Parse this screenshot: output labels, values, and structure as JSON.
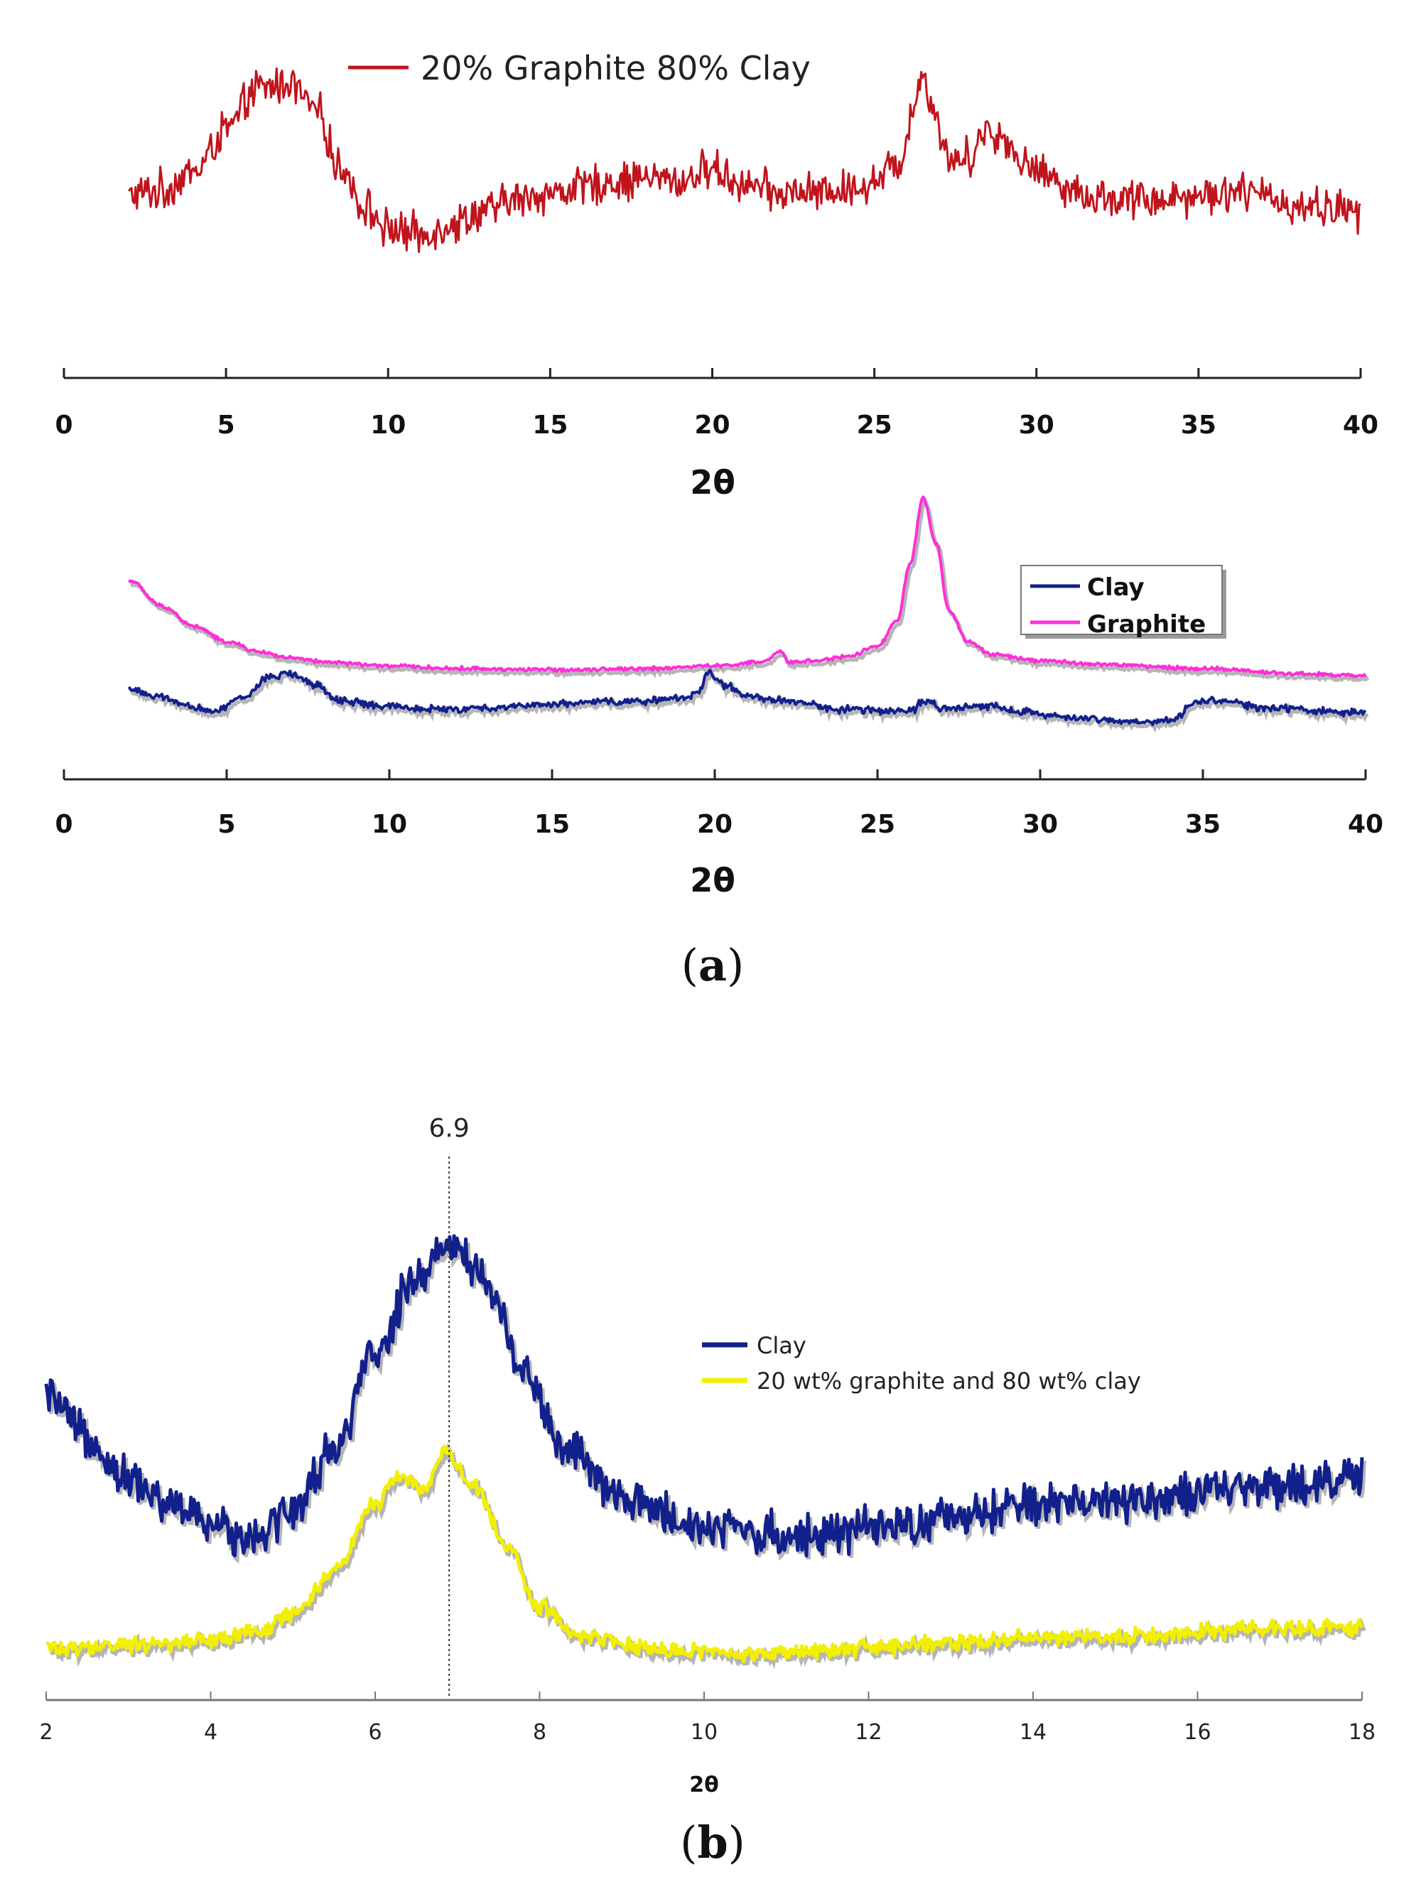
{
  "figure": {
    "panel_a_label": "(a)",
    "panel_b_label": "(b)",
    "panel_a_letter": "a",
    "panel_b_letter": "b"
  },
  "colors": {
    "composite_red": "#c0141c",
    "clay_blue": "#12208c",
    "graphite_magenta": "#ff2ed8",
    "composite_yellow": "#f2f000",
    "shadow": "#b5b5b5"
  },
  "chart_data": [
    {
      "id": "a-top",
      "type": "line",
      "title": "",
      "xlabel": "2θ",
      "ylabel": "",
      "xlim": [
        0,
        40
      ],
      "xticks": [
        0,
        5,
        10,
        15,
        20,
        25,
        30,
        35,
        40
      ],
      "xtick_labels": [
        "0",
        "5",
        "10",
        "15",
        "20",
        "25",
        "30",
        "35",
        "40"
      ],
      "legend": [
        "20% Graphite 80% Clay"
      ],
      "legend_position": "top-center",
      "series": [
        {
          "name": "20% Graphite 80% Clay",
          "color_key": "composite_red",
          "noise": 0.55,
          "points": [
            [
              2,
              2.0
            ],
            [
              3,
              2.2
            ],
            [
              4,
              2.8
            ],
            [
              5,
              4.2
            ],
            [
              6,
              5.6
            ],
            [
              7,
              5.8
            ],
            [
              7.8,
              4.8
            ],
            [
              8.5,
              3.0
            ],
            [
              9.3,
              1.6
            ],
            [
              10,
              0.9
            ],
            [
              11,
              0.7
            ],
            [
              12,
              1.1
            ],
            [
              13,
              1.5
            ],
            [
              14,
              1.9
            ],
            [
              15,
              2.1
            ],
            [
              16,
              2.3
            ],
            [
              17,
              2.5
            ],
            [
              18,
              2.6
            ],
            [
              19,
              2.5
            ],
            [
              20,
              2.9
            ],
            [
              21,
              2.4
            ],
            [
              22,
              2.1
            ],
            [
              23,
              2.1
            ],
            [
              24,
              2.2
            ],
            [
              25,
              2.5
            ],
            [
              25.8,
              3.2
            ],
            [
              26.2,
              5.0
            ],
            [
              26.5,
              6.1
            ],
            [
              26.8,
              5.0
            ],
            [
              27.3,
              3.2
            ],
            [
              27.8,
              3.3
            ],
            [
              28.5,
              4.2
            ],
            [
              29,
              3.9
            ],
            [
              29.7,
              3.0
            ],
            [
              30.5,
              2.6
            ],
            [
              31.5,
              2.0
            ],
            [
              33,
              1.9
            ],
            [
              35,
              2.0
            ],
            [
              36,
              2.2
            ],
            [
              37,
              2.0
            ],
            [
              38,
              1.7
            ],
            [
              39,
              1.6
            ],
            [
              40,
              1.5
            ]
          ]
        }
      ]
    },
    {
      "id": "a-bottom",
      "type": "line",
      "title": "",
      "xlabel": "2θ",
      "ylabel": "",
      "xlim": [
        0,
        40
      ],
      "xticks": [
        0,
        5,
        10,
        15,
        20,
        25,
        30,
        35,
        40
      ],
      "xtick_labels": [
        "0",
        "5",
        "10",
        "15",
        "20",
        "25",
        "30",
        "35",
        "40"
      ],
      "legend": [
        "Clay",
        "Graphite"
      ],
      "legend_position": "top-right",
      "series": [
        {
          "name": "Graphite",
          "color_key": "graphite_magenta",
          "noise": 0.06,
          "points": [
            [
              2,
              6.2
            ],
            [
              3,
              5.2
            ],
            [
              4,
              4.4
            ],
            [
              5,
              3.8
            ],
            [
              6,
              3.4
            ],
            [
              7,
              3.15
            ],
            [
              8,
              3.0
            ],
            [
              10,
              2.85
            ],
            [
              12,
              2.75
            ],
            [
              15,
              2.7
            ],
            [
              18,
              2.75
            ],
            [
              20,
              2.85
            ],
            [
              21.5,
              3.0
            ],
            [
              22,
              3.4
            ],
            [
              22.3,
              3.0
            ],
            [
              23,
              3.05
            ],
            [
              24,
              3.2
            ],
            [
              25,
              3.6
            ],
            [
              25.6,
              4.6
            ],
            [
              26,
              6.8
            ],
            [
              26.4,
              9.4
            ],
            [
              26.8,
              7.6
            ],
            [
              27.2,
              5.0
            ],
            [
              27.8,
              3.8
            ],
            [
              28.5,
              3.3
            ],
            [
              30,
              3.05
            ],
            [
              32,
              2.9
            ],
            [
              35,
              2.75
            ],
            [
              38,
              2.55
            ],
            [
              40,
              2.45
            ]
          ]
        },
        {
          "name": "Clay",
          "color_key": "clay_blue",
          "noise": 0.12,
          "points": [
            [
              2,
              1.95
            ],
            [
              3,
              1.6
            ],
            [
              4,
              1.2
            ],
            [
              4.6,
              1.1
            ],
            [
              5.5,
              1.6
            ],
            [
              6.3,
              2.4
            ],
            [
              7,
              2.55
            ],
            [
              7.7,
              2.1
            ],
            [
              8.5,
              1.5
            ],
            [
              10,
              1.25
            ],
            [
              12,
              1.15
            ],
            [
              15,
              1.35
            ],
            [
              17,
              1.45
            ],
            [
              19,
              1.55
            ],
            [
              19.5,
              1.9
            ],
            [
              19.8,
              2.6
            ],
            [
              20.3,
              2.1
            ],
            [
              21,
              1.7
            ],
            [
              22,
              1.5
            ],
            [
              24,
              1.15
            ],
            [
              26,
              1.1
            ],
            [
              26.5,
              1.5
            ],
            [
              27,
              1.15
            ],
            [
              28.5,
              1.3
            ],
            [
              29.5,
              1.05
            ],
            [
              31,
              0.8
            ],
            [
              33,
              0.65
            ],
            [
              34,
              0.7
            ],
            [
              34.8,
              1.45
            ],
            [
              35.5,
              1.5
            ],
            [
              37,
              1.2
            ],
            [
              40,
              1.0
            ]
          ]
        }
      ]
    },
    {
      "id": "b",
      "type": "line",
      "title": "",
      "xlabel": "2θ",
      "ylabel": "",
      "xlim": [
        2,
        18
      ],
      "xticks": [
        2,
        4,
        6,
        8,
        10,
        12,
        14,
        16,
        18
      ],
      "xtick_labels": [
        "2",
        "4",
        "6",
        "8",
        "10",
        "12",
        "14",
        "16",
        "18"
      ],
      "legend": [
        "Clay",
        "20 wt% graphite and 80 wt% clay"
      ],
      "legend_position": "right",
      "annotation": {
        "x": 6.9,
        "label": "6.9"
      },
      "series": [
        {
          "name": "Clay",
          "color_key": "clay_blue",
          "noise": 0.35,
          "points": [
            [
              2,
              5.6
            ],
            [
              2.5,
              4.8
            ],
            [
              3,
              4.0
            ],
            [
              3.5,
              3.5
            ],
            [
              4,
              3.1
            ],
            [
              4.5,
              2.9
            ],
            [
              5,
              3.4
            ],
            [
              5.5,
              4.6
            ],
            [
              6,
              6.4
            ],
            [
              6.5,
              8.0
            ],
            [
              6.9,
              8.6
            ],
            [
              7.3,
              8.0
            ],
            [
              7.8,
              6.2
            ],
            [
              8.3,
              4.6
            ],
            [
              9,
              3.6
            ],
            [
              10,
              3.1
            ],
            [
              11,
              2.9
            ],
            [
              12,
              3.0
            ],
            [
              13,
              3.2
            ],
            [
              14,
              3.5
            ],
            [
              15,
              3.6
            ],
            [
              16,
              3.7
            ],
            [
              17,
              3.9
            ],
            [
              18,
              4.0
            ]
          ]
        },
        {
          "name": "20 wt% graphite and 80 wt% clay",
          "color_key": "composite_yellow",
          "noise": 0.13,
          "points": [
            [
              2,
              0.7
            ],
            [
              3,
              0.75
            ],
            [
              4,
              0.85
            ],
            [
              4.5,
              1.0
            ],
            [
              5,
              1.35
            ],
            [
              5.5,
              2.2
            ],
            [
              6,
              3.5
            ],
            [
              6.3,
              4.1
            ],
            [
              6.6,
              3.8
            ],
            [
              6.85,
              4.5
            ],
            [
              7.2,
              3.9
            ],
            [
              7.6,
              2.7
            ],
            [
              8,
              1.5
            ],
            [
              8.5,
              0.95
            ],
            [
              9.5,
              0.65
            ],
            [
              11,
              0.6
            ],
            [
              12,
              0.7
            ],
            [
              13,
              0.8
            ],
            [
              14,
              0.9
            ],
            [
              15,
              0.9
            ],
            [
              16,
              1.0
            ],
            [
              17,
              1.1
            ],
            [
              18,
              1.1
            ]
          ]
        }
      ]
    }
  ]
}
